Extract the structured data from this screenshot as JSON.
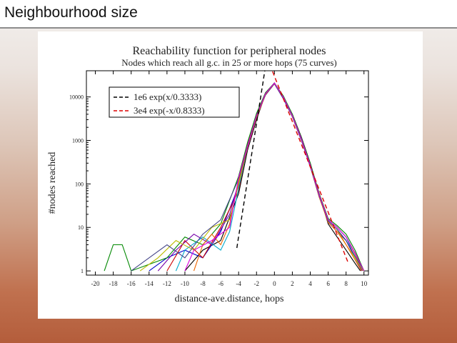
{
  "slide": {
    "title": "Neighbourhood size"
  },
  "chart_data": {
    "type": "line",
    "title": "Reachability function for peripheral nodes",
    "subtitle": "Nodes which reach all g.c. in 25 or more hops (75 curves)",
    "xlabel": "distance-ave.distance, hops",
    "ylabel": "#nodes reached",
    "xlim": [
      -21,
      10.5
    ],
    "ylim": [
      0.8,
      40000
    ],
    "yscale": "log",
    "x_ticks": [
      -20,
      -18,
      -16,
      -14,
      -12,
      -10,
      -8,
      -6,
      -4,
      -2,
      0,
      2,
      4,
      6,
      8,
      10
    ],
    "x_tick_labels": [
      "-20",
      "-18",
      "-16",
      "-14",
      "-12",
      "-10",
      "-8",
      "-6",
      "-4",
      "-2",
      "0",
      "2",
      "4",
      "6",
      "8",
      "10"
    ],
    "y_ticks": [
      1,
      10,
      100,
      1000,
      10000
    ],
    "y_tick_labels": [
      "1",
      "10",
      "100",
      "1000",
      "10000"
    ],
    "grid": false,
    "legend_position": "top-left",
    "legend": [
      {
        "label": "1e6 exp(x/0.3333)",
        "color": "#000000",
        "dash": "dashed"
      },
      {
        "label": "3e4 exp(-x/0.8333)",
        "color": "#dd0000",
        "dash": "dashed"
      }
    ],
    "fit_lines": [
      {
        "name": "1e6 exp(x/0.3333)",
        "a": 1000000,
        "scale": 0.3333,
        "x": [
          -4.2,
          -0.9
        ]
      },
      {
        "name": "3e4 exp(-x/0.8333)",
        "a": 30000,
        "scale": -0.8333,
        "x": [
          -0.5,
          8.2
        ]
      }
    ],
    "curves_note": "75 curves",
    "series": [
      {
        "color": "#000000",
        "points": [
          [
            -10,
            1
          ],
          [
            -8,
            3
          ],
          [
            -6,
            5
          ],
          [
            -4,
            60
          ],
          [
            -3,
            600
          ],
          [
            -2,
            3000
          ],
          [
            -1,
            12000
          ],
          [
            0,
            20000
          ],
          [
            1,
            10000
          ],
          [
            2,
            4000
          ],
          [
            3,
            1200
          ],
          [
            4,
            300
          ],
          [
            5,
            60
          ],
          [
            6,
            12
          ],
          [
            7,
            6
          ],
          [
            8,
            3
          ],
          [
            9,
            1.5
          ],
          [
            9.6,
            1
          ]
        ]
      },
      {
        "color": "#0000cc",
        "points": [
          [
            -14,
            1
          ],
          [
            -12,
            2
          ],
          [
            -10,
            3
          ],
          [
            -8,
            2
          ],
          [
            -6,
            8
          ],
          [
            -4,
            90
          ],
          [
            -3,
            700
          ],
          [
            -2,
            3500
          ],
          [
            -1,
            11000
          ],
          [
            0,
            20000
          ],
          [
            1,
            9000
          ],
          [
            2,
            3500
          ],
          [
            3,
            1000
          ],
          [
            4,
            250
          ],
          [
            5,
            50
          ],
          [
            6,
            14
          ],
          [
            7,
            9
          ],
          [
            8,
            5
          ],
          [
            9,
            2
          ],
          [
            9.8,
            1
          ]
        ]
      },
      {
        "color": "#cc0000",
        "points": [
          [
            -12,
            1
          ],
          [
            -10,
            5
          ],
          [
            -8,
            2
          ],
          [
            -6,
            10
          ],
          [
            -4,
            70
          ],
          [
            -3,
            800
          ],
          [
            -2,
            4000
          ],
          [
            -1,
            12000
          ],
          [
            0,
            21000
          ],
          [
            1,
            10000
          ],
          [
            2,
            3800
          ],
          [
            3,
            1100
          ],
          [
            4,
            280
          ],
          [
            5,
            55
          ],
          [
            6,
            15
          ],
          [
            7,
            10
          ],
          [
            8,
            6
          ],
          [
            9,
            2.5
          ],
          [
            10,
            1
          ]
        ]
      },
      {
        "color": "#008800",
        "points": [
          [
            -19,
            1
          ],
          [
            -18,
            4
          ],
          [
            -17,
            4
          ],
          [
            -16,
            1
          ],
          [
            -12,
            2
          ],
          [
            -10,
            6
          ],
          [
            -8,
            4
          ],
          [
            -6,
            12
          ],
          [
            -4,
            150
          ],
          [
            -3,
            900
          ],
          [
            -2,
            4200
          ],
          [
            -1,
            12500
          ],
          [
            0,
            21000
          ],
          [
            1,
            10500
          ],
          [
            2,
            4000
          ],
          [
            3,
            1150
          ],
          [
            4,
            300
          ],
          [
            5,
            60
          ],
          [
            6,
            16
          ],
          [
            7,
            11
          ],
          [
            8,
            7
          ],
          [
            9,
            3
          ],
          [
            10,
            1
          ]
        ]
      },
      {
        "color": "#7700aa",
        "points": [
          [
            -13,
            1
          ],
          [
            -11,
            3
          ],
          [
            -9,
            7
          ],
          [
            -7,
            4
          ],
          [
            -5,
            20
          ],
          [
            -4,
            110
          ],
          [
            -3,
            650
          ],
          [
            -2,
            3300
          ],
          [
            -1,
            11500
          ],
          [
            0,
            20500
          ],
          [
            1,
            9500
          ],
          [
            2,
            3600
          ],
          [
            3,
            1050
          ],
          [
            4,
            270
          ],
          [
            5,
            52
          ],
          [
            6,
            13
          ],
          [
            7,
            8
          ],
          [
            8,
            5
          ],
          [
            9,
            2
          ],
          [
            9.8,
            1
          ]
        ]
      },
      {
        "color": "#00aacc",
        "points": [
          [
            -11,
            1
          ],
          [
            -10,
            3
          ],
          [
            -8,
            6
          ],
          [
            -6,
            3
          ],
          [
            -5,
            8
          ],
          [
            -4,
            80
          ],
          [
            -3,
            750
          ],
          [
            -2,
            3700
          ],
          [
            -1,
            11800
          ],
          [
            0,
            20800
          ],
          [
            1,
            9800
          ],
          [
            2,
            3700
          ],
          [
            3,
            1080
          ],
          [
            4,
            260
          ],
          [
            5,
            55
          ],
          [
            6,
            15
          ],
          [
            7,
            10
          ],
          [
            8,
            6
          ],
          [
            9,
            2
          ],
          [
            10,
            1
          ]
        ]
      },
      {
        "color": "#bbbb00",
        "points": [
          [
            -15,
            1
          ],
          [
            -13,
            2
          ],
          [
            -11,
            5
          ],
          [
            -9,
            3
          ],
          [
            -7,
            10
          ],
          [
            -5,
            15
          ],
          [
            -4,
            100
          ],
          [
            -3,
            700
          ],
          [
            -2,
            3600
          ],
          [
            -1,
            11700
          ],
          [
            0,
            20600
          ],
          [
            1,
            9700
          ],
          [
            2,
            3650
          ],
          [
            3,
            1060
          ],
          [
            4,
            265
          ],
          [
            5,
            54
          ],
          [
            6,
            14
          ],
          [
            7,
            9
          ],
          [
            8,
            4
          ],
          [
            9,
            2
          ],
          [
            9.9,
            1
          ]
        ]
      },
      {
        "color": "#ee6600",
        "points": [
          [
            -9,
            1
          ],
          [
            -8,
            4
          ],
          [
            -7,
            7
          ],
          [
            -6,
            4
          ],
          [
            -5,
            12
          ],
          [
            -4,
            120
          ],
          [
            -3,
            680
          ],
          [
            -2,
            3400
          ],
          [
            -1,
            11200
          ],
          [
            0,
            20200
          ],
          [
            1,
            9400
          ],
          [
            2,
            3550
          ],
          [
            3,
            1020
          ],
          [
            4,
            255
          ],
          [
            5,
            50
          ],
          [
            6,
            13
          ],
          [
            7,
            8
          ],
          [
            8,
            4
          ],
          [
            9,
            1.8
          ],
          [
            9.7,
            1
          ]
        ]
      },
      {
        "color": "#444488",
        "points": [
          [
            -16,
            1
          ],
          [
            -14,
            2
          ],
          [
            -12,
            4
          ],
          [
            -10,
            2
          ],
          [
            -8,
            7
          ],
          [
            -6,
            15
          ],
          [
            -4,
            130
          ],
          [
            -3,
            720
          ],
          [
            -2,
            3650
          ],
          [
            -1,
            11600
          ],
          [
            0,
            20400
          ],
          [
            1,
            9600
          ],
          [
            2,
            3620
          ],
          [
            3,
            1040
          ],
          [
            4,
            262
          ],
          [
            5,
            53
          ],
          [
            6,
            14
          ],
          [
            7,
            9
          ],
          [
            8,
            5
          ],
          [
            9,
            2.2
          ],
          [
            10,
            1
          ]
        ]
      },
      {
        "color": "#dd00dd",
        "points": [
          [
            -10,
            1
          ],
          [
            -9,
            3
          ],
          [
            -7,
            5
          ],
          [
            -5,
            10
          ],
          [
            -4,
            140
          ],
          [
            -3,
            760
          ],
          [
            -2,
            3750
          ],
          [
            -1,
            11900
          ],
          [
            0,
            20900
          ],
          [
            1,
            9900
          ],
          [
            2,
            3720
          ],
          [
            3,
            1090
          ],
          [
            4,
            270
          ],
          [
            5,
            56
          ],
          [
            6,
            15
          ],
          [
            7,
            10
          ],
          [
            8,
            6
          ],
          [
            9,
            2.6
          ],
          [
            10,
            1
          ]
        ]
      }
    ]
  }
}
